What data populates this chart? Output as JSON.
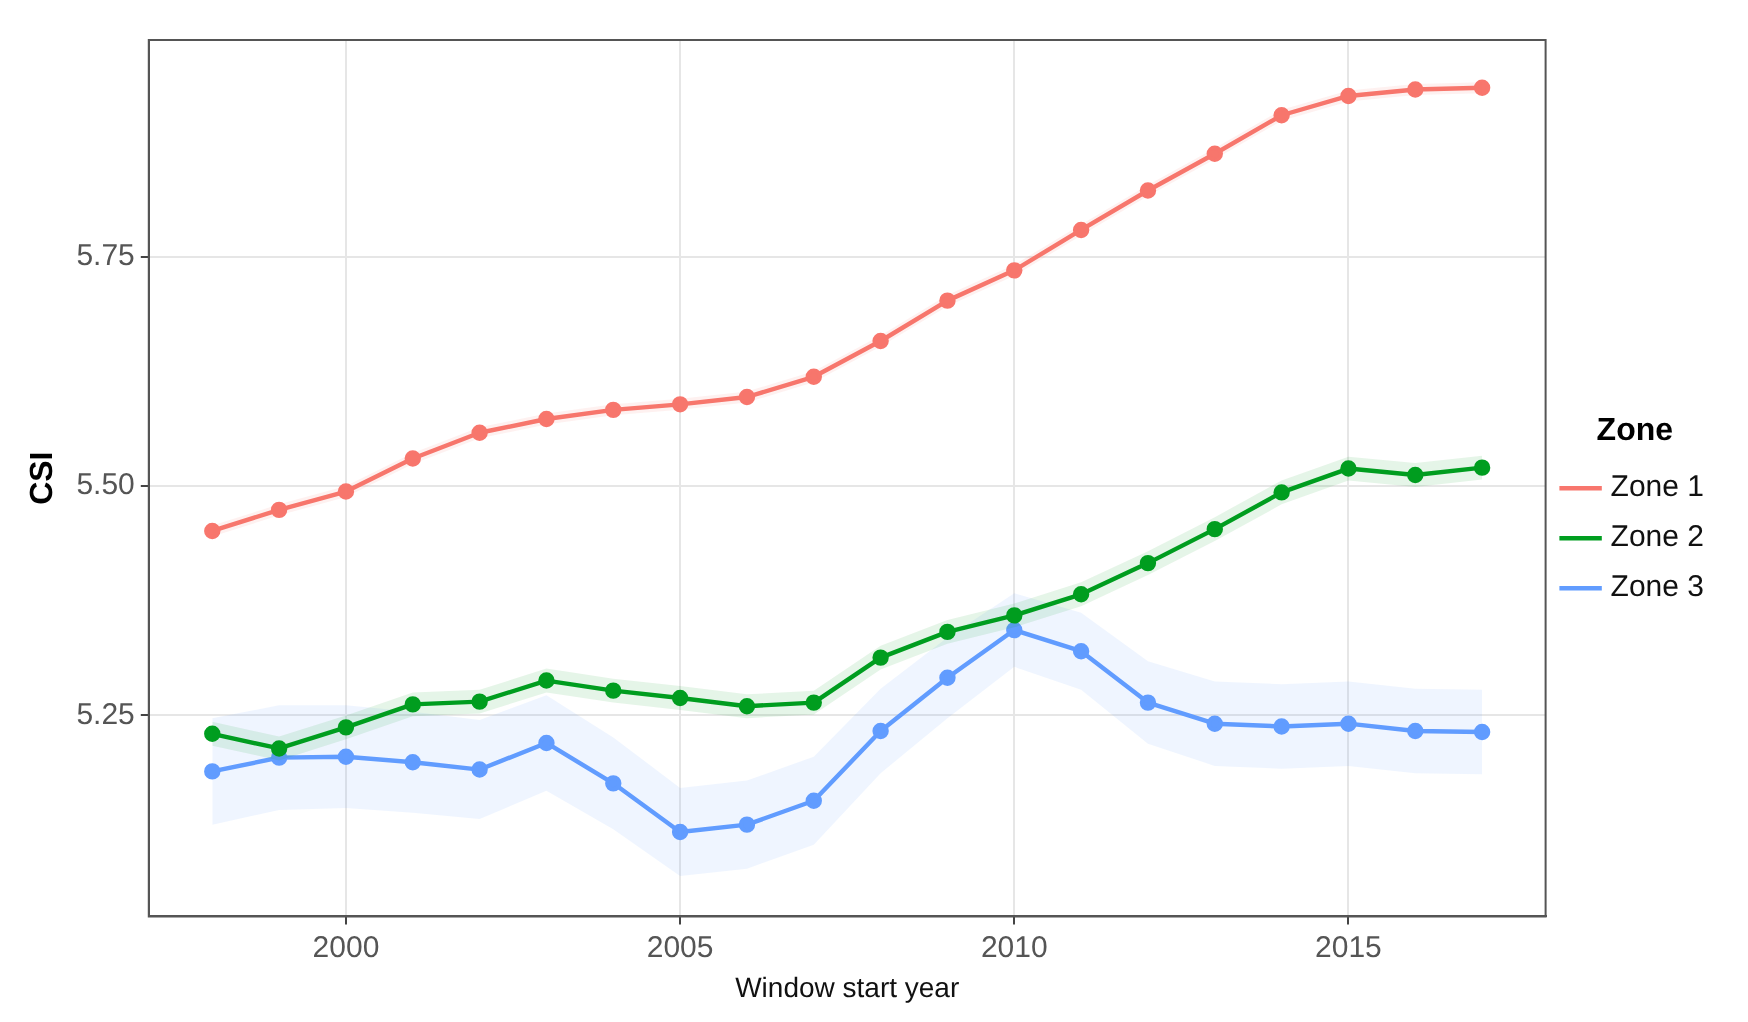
{
  "chart_data": {
    "type": "line",
    "xlabel": "Window start year",
    "ylabel": "CSI",
    "legend_title": "Zone",
    "legend": "right",
    "grid": true,
    "marker": "circle",
    "line_style": "solid",
    "x": [
      1998,
      1999,
      2000,
      2001,
      2002,
      2003,
      2004,
      2005,
      2006,
      2007,
      2008,
      2009,
      2010,
      2011,
      2012,
      2013,
      2014,
      2015,
      2016,
      2017
    ],
    "xlim": [
      1997.05,
      2017.95
    ],
    "xticks": [
      2000,
      2005,
      2010,
      2015
    ],
    "ylim": [
      5.031,
      5.986
    ],
    "yticks": [
      5.25,
      {
        "value": 5.5,
        "label": "5.50"
      },
      5.75
    ],
    "series": [
      {
        "name": "Zone 1",
        "color": "#f8766d",
        "values": [
          5.451,
          5.474,
          5.494,
          5.53,
          5.558,
          5.573,
          5.583,
          5.589,
          5.597,
          5.619,
          5.658,
          5.702,
          5.735,
          5.779,
          5.822,
          5.862,
          5.904,
          5.925,
          5.932,
          5.934
        ],
        "lower": [
          5.445,
          5.468,
          5.488,
          5.524,
          5.552,
          5.567,
          5.577,
          5.583,
          5.591,
          5.613,
          5.652,
          5.696,
          5.729,
          5.773,
          5.816,
          5.856,
          5.898,
          5.919,
          5.926,
          5.928
        ],
        "upper": [
          5.457,
          5.48,
          5.5,
          5.536,
          5.564,
          5.579,
          5.589,
          5.595,
          5.603,
          5.625,
          5.664,
          5.708,
          5.741,
          5.785,
          5.828,
          5.868,
          5.91,
          5.931,
          5.938,
          5.94
        ]
      },
      {
        "name": "Zone 2",
        "color": "#009e20",
        "values": [
          5.23,
          5.214,
          5.237,
          5.262,
          5.265,
          5.288,
          5.277,
          5.269,
          5.26,
          5.264,
          5.313,
          5.341,
          5.359,
          5.382,
          5.416,
          5.453,
          5.493,
          5.519,
          5.512,
          5.52
        ],
        "lower": [
          5.217,
          5.201,
          5.224,
          5.249,
          5.252,
          5.275,
          5.264,
          5.256,
          5.247,
          5.251,
          5.3,
          5.328,
          5.346,
          5.369,
          5.403,
          5.44,
          5.48,
          5.506,
          5.499,
          5.507
        ],
        "upper": [
          5.243,
          5.227,
          5.25,
          5.275,
          5.278,
          5.301,
          5.29,
          5.282,
          5.273,
          5.277,
          5.326,
          5.354,
          5.372,
          5.395,
          5.429,
          5.466,
          5.506,
          5.532,
          5.525,
          5.533
        ]
      },
      {
        "name": "Zone 3",
        "color": "#619cff",
        "values": [
          5.189,
          5.204,
          5.205,
          5.199,
          5.191,
          5.22,
          5.176,
          5.123,
          5.131,
          5.157,
          5.233,
          5.291,
          5.343,
          5.32,
          5.264,
          5.241,
          5.238,
          5.241,
          5.233,
          5.232
        ],
        "lower": [
          5.131,
          5.147,
          5.149,
          5.144,
          5.137,
          5.168,
          5.126,
          5.075,
          5.083,
          5.109,
          5.187,
          5.247,
          5.303,
          5.278,
          5.219,
          5.195,
          5.192,
          5.195,
          5.187,
          5.186
        ],
        "upper": [
          5.247,
          5.261,
          5.261,
          5.254,
          5.245,
          5.272,
          5.226,
          5.171,
          5.179,
          5.205,
          5.279,
          5.335,
          5.383,
          5.362,
          5.309,
          5.287,
          5.284,
          5.287,
          5.279,
          5.278
        ]
      }
    ]
  }
}
